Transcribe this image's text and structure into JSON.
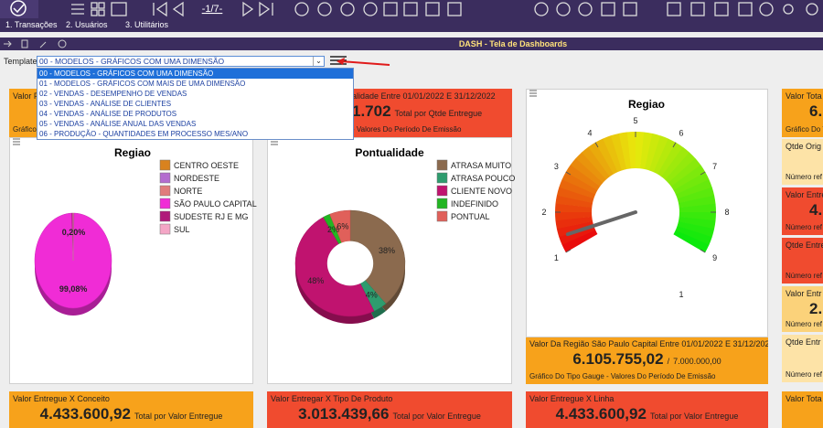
{
  "toolbar": {
    "page": "-1/7-"
  },
  "tabs": [
    "1. Transações",
    "2. Usuários",
    "3. Utilitários"
  ],
  "title": "DASH - Tela de Dashboards",
  "template": {
    "label": "Template",
    "selected": "00 - MODELOS - GRÁFICOS COM UMA DIMENSÃO",
    "options": [
      "00 - MODELOS - GRÁFICOS COM UMA DIMENSÃO",
      "01 - MODELOS - GRÁFICOS COM MAIS DE UMA DIMENSÃO",
      "02 - VENDAS - DESEMPENHO DE VENDAS",
      "03 - VENDAS - ANÁLISE DE CLIENTES",
      "04 - VENDAS - ANÁLISE DE PRODUTOS",
      "05 - VENDAS - ANÁLISE ANUAL DAS VENDAS",
      "06 - PRODUÇÃO - QUANTIDADES EM PROCESSO MES/ANO"
    ]
  },
  "cards": [
    {
      "title": "Valor P",
      "footer": "Gráfico D",
      "color": "#f7a21b"
    },
    {
      "title": "alidade Entre 01/01/2022 E 31/12/2022",
      "value": "1.702",
      "unit": "Total por Qtde Entregue",
      "footer": "- Valores Do Período De Emissão",
      "color": "#f04b2f"
    },
    {
      "title": "Valor Da Região São Paulo Capital Entre 01/01/2022 E 31/12/2022",
      "value": "6.105.755,02",
      "sep": "/",
      "unit": "7.000.000,00",
      "footer": "Gráfico Do Tipo Gauge - Valores Do Período De Emissão",
      "color": "#f7a21b"
    },
    {
      "title": "Valor Tota",
      "value": "6.",
      "footer": "Gráfico Do T",
      "color": "#f7a21b"
    },
    {
      "title": "Qtde Orig",
      "footer": "Número ref",
      "color": "#fde3a7"
    },
    {
      "title": "Valor Entre",
      "value": "4.",
      "footer": "Número ref",
      "color": "#f04b2f"
    },
    {
      "title": "Qtde Entre",
      "footer": "Número ref",
      "color": "#f04b2f"
    },
    {
      "title": "Valor Entr",
      "value": "2.",
      "footer": "Número ref",
      "color": "#fbd27a"
    },
    {
      "title": "Qtde Entr",
      "footer": "Número ref",
      "color": "#fde3a7"
    },
    {
      "title": "Valor Entregue X Conceito",
      "value": "4.433.600,92",
      "unit": "Total por Valor Entregue",
      "color": "#f7a21b"
    },
    {
      "title": "Valor Entregar X Tipo De Produto",
      "value": "3.013.439,66",
      "unit": "Total por Valor Entregue",
      "color": "#f04b2f"
    },
    {
      "title": "Valor Entregue X Linha",
      "value": "4.433.600,92",
      "unit": "Total por Valor Entregue",
      "color": "#f04b2f"
    },
    {
      "title": "Valor Tota",
      "color": "#f7a21b"
    }
  ],
  "chart_data": [
    {
      "type": "pie",
      "title": "Regiao",
      "categories": [
        "CENTRO OESTE",
        "NORDESTE",
        "NORTE",
        "SÃO PAULO CAPITAL",
        "SUDESTE RJ E MG",
        "SUL"
      ],
      "values": [
        0.1,
        0.1,
        0.2,
        99.08,
        0.4,
        0.12
      ],
      "value_labels": [
        null,
        null,
        "0,20%",
        "99,08%",
        null,
        null
      ],
      "colors": [
        "#d9821e",
        "#b36ccf",
        "#e07c7c",
        "#f02cd6",
        "#b0197a",
        "#f4a6c6"
      ]
    },
    {
      "type": "donut",
      "title": "Pontualidade",
      "categories": [
        "ATRASA MUITO",
        "ATRASA POUCO",
        "CLIENTE NOVO",
        "INDEFINIDO",
        "PONTUAL"
      ],
      "values": [
        38,
        4,
        48,
        2,
        6
      ],
      "value_labels": [
        "38%",
        "4%",
        "48%",
        "2%",
        "6%"
      ],
      "colors": [
        "#8b6a4e",
        "#2e9c6e",
        "#c0136f",
        "#22b522",
        "#e0605a"
      ]
    },
    {
      "type": "gauge",
      "title": "Regiao",
      "lim": [
        1,
        9
      ],
      "ticks": [
        1,
        2,
        3,
        4,
        5,
        6,
        7,
        8,
        9
      ],
      "needle": 1.4,
      "annotation": "1"
    }
  ]
}
